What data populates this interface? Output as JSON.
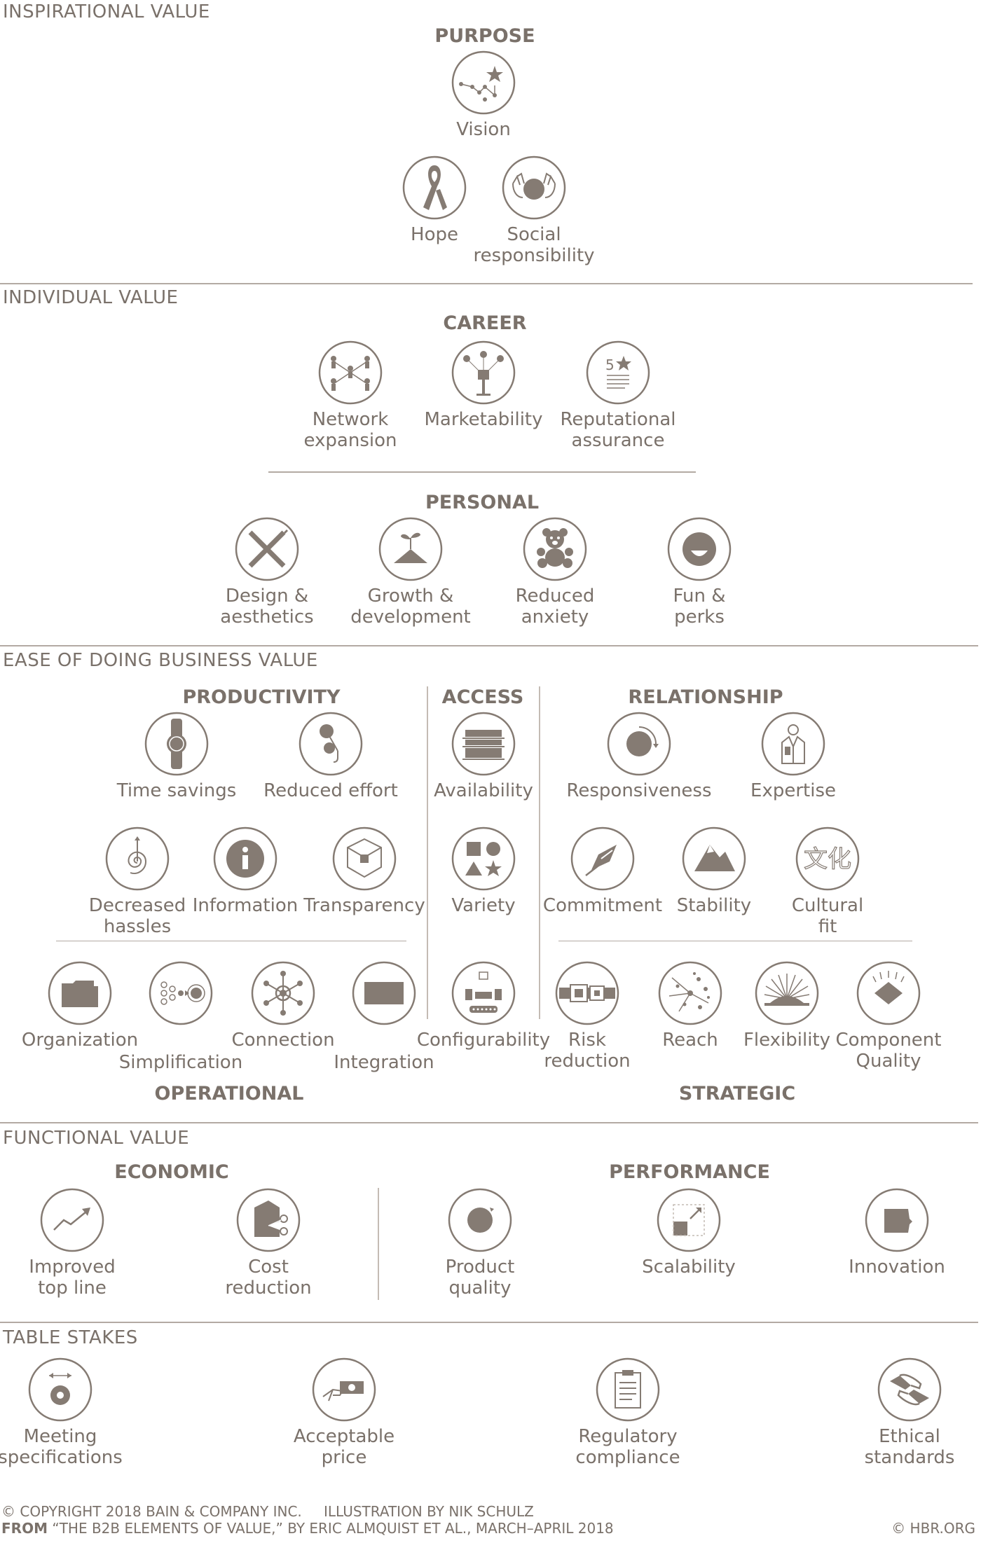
{
  "sections": {
    "inspirational": "INSPIRATIONAL VALUE",
    "individual": "INDIVIDUAL VALUE",
    "ease": "EASE OF DOING BUSINESS VALUE",
    "functional": "FUNCTIONAL VALUE",
    "table_stakes": "TABLE STAKES"
  },
  "categories": {
    "purpose": "PURPOSE",
    "career": "CAREER",
    "personal": "PERSONAL",
    "productivity": "PRODUCTIVITY",
    "access": "ACCESS",
    "relationship": "RELATIONSHIP",
    "operational": "OPERATIONAL",
    "strategic": "STRATEGIC",
    "economic": "ECONOMIC",
    "performance": "PERFORMANCE"
  },
  "elements": {
    "vision": "Vision",
    "hope": "Hope",
    "social_responsibility": "Social\nresponsibility",
    "network_expansion": "Network\nexpansion",
    "marketability": "Marketability",
    "reputational_assurance": "Reputational\nassurance",
    "design_aesthetics": "Design &\naesthetics",
    "growth_development": "Growth &\ndevelopment",
    "reduced_anxiety": "Reduced\nanxiety",
    "fun_perks": "Fun &\nperks",
    "time_savings": "Time savings",
    "reduced_effort": "Reduced effort",
    "availability": "Availability",
    "responsiveness": "Responsiveness",
    "expertise": "Expertise",
    "decreased_hassles": "Decreased\nhassles",
    "information": "Information",
    "transparency": "Transparency",
    "variety": "Variety",
    "commitment": "Commitment",
    "stability": "Stability",
    "cultural_fit": "Cultural\nfit",
    "organization": "Organization",
    "simplification": "Simplification",
    "connection": "Connection",
    "integration": "Integration",
    "configurability": "Configurability",
    "risk_reduction": "Risk\nreduction",
    "reach": "Reach",
    "flexibility": "Flexibility",
    "component_quality": "Component\nQuality",
    "improved_top_line": "Improved\ntop line",
    "cost_reduction": "Cost\nreduction",
    "product_quality": "Product\nquality",
    "scalability": "Scalability",
    "innovation": "Innovation",
    "meeting_specifications": "Meeting\nspecifications",
    "acceptable_price": "Acceptable\nprice",
    "regulatory_compliance": "Regulatory\ncompliance",
    "ethical_standards": "Ethical\nstandards"
  },
  "footer": {
    "copyright": "© COPYRIGHT 2018 BAIN & COMPANY INC.",
    "illustration": "ILLUSTRATION BY NIK SCHULZ",
    "from_label": "FROM",
    "from_text": "“THE B2B ELEMENTS OF VALUE,” BY ERIC ALMQUIST ET AL., MARCH–APRIL 2018",
    "site": "© HBR.ORG"
  },
  "colors": {
    "ink": "#7a716a",
    "rule": "#b3aaa3",
    "icon_fill": "#857b73"
  }
}
